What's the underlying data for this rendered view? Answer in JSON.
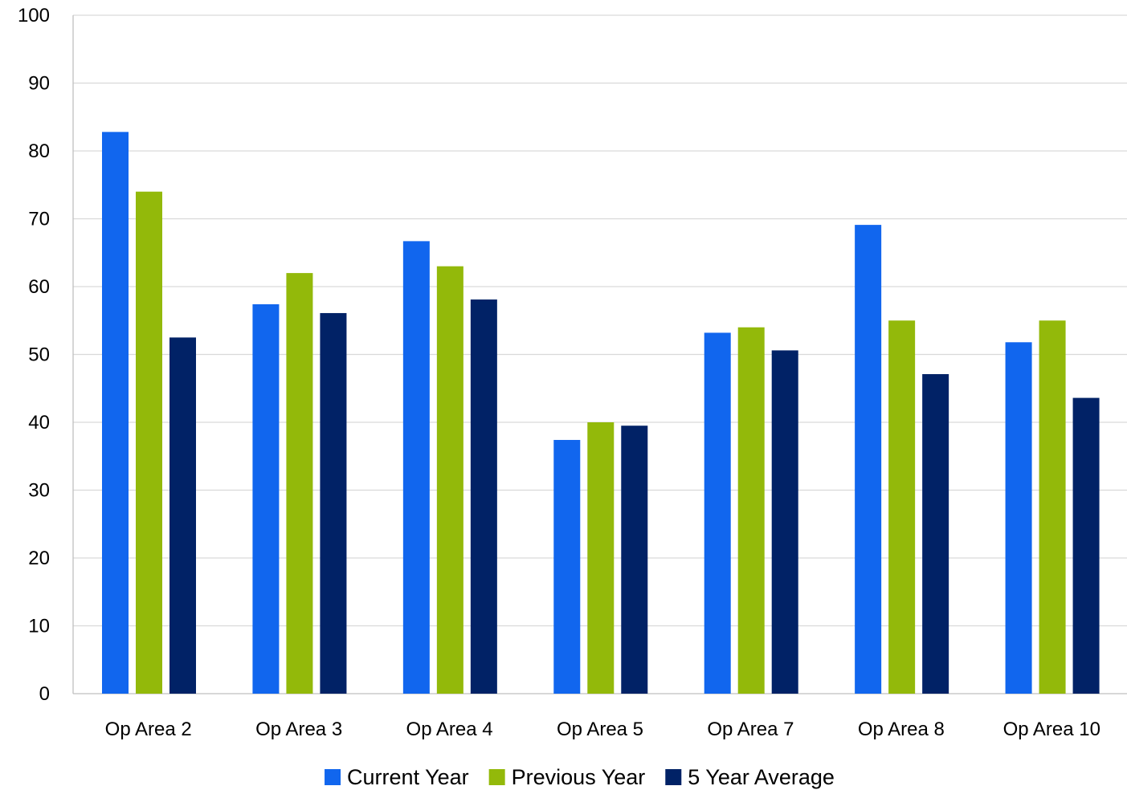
{
  "chart_data": {
    "type": "bar",
    "title": "",
    "xlabel": "",
    "ylabel": "",
    "ylim": [
      0,
      100
    ],
    "yticks": [
      0,
      10,
      20,
      30,
      40,
      50,
      60,
      70,
      80,
      90,
      100
    ],
    "grid": true,
    "legend_position": "bottom",
    "categories": [
      "Op Area 2",
      "Op Area 3",
      "Op Area 4",
      "Op Area 5",
      "Op Area 7",
      "Op Area 8",
      "Op Area 10"
    ],
    "series": [
      {
        "name": "Current Year",
        "color": "#1166EE",
        "values": [
          82.8,
          57.4,
          66.7,
          37.4,
          53.2,
          69.1,
          51.8
        ]
      },
      {
        "name": "Previous Year",
        "color": "#93B90A",
        "values": [
          74,
          62,
          63,
          40,
          54,
          55,
          55
        ]
      },
      {
        "name": "5 Year Average",
        "color": "#012266",
        "values": [
          52.5,
          56.1,
          58.1,
          39.5,
          50.6,
          47.1,
          43.6
        ]
      }
    ]
  }
}
